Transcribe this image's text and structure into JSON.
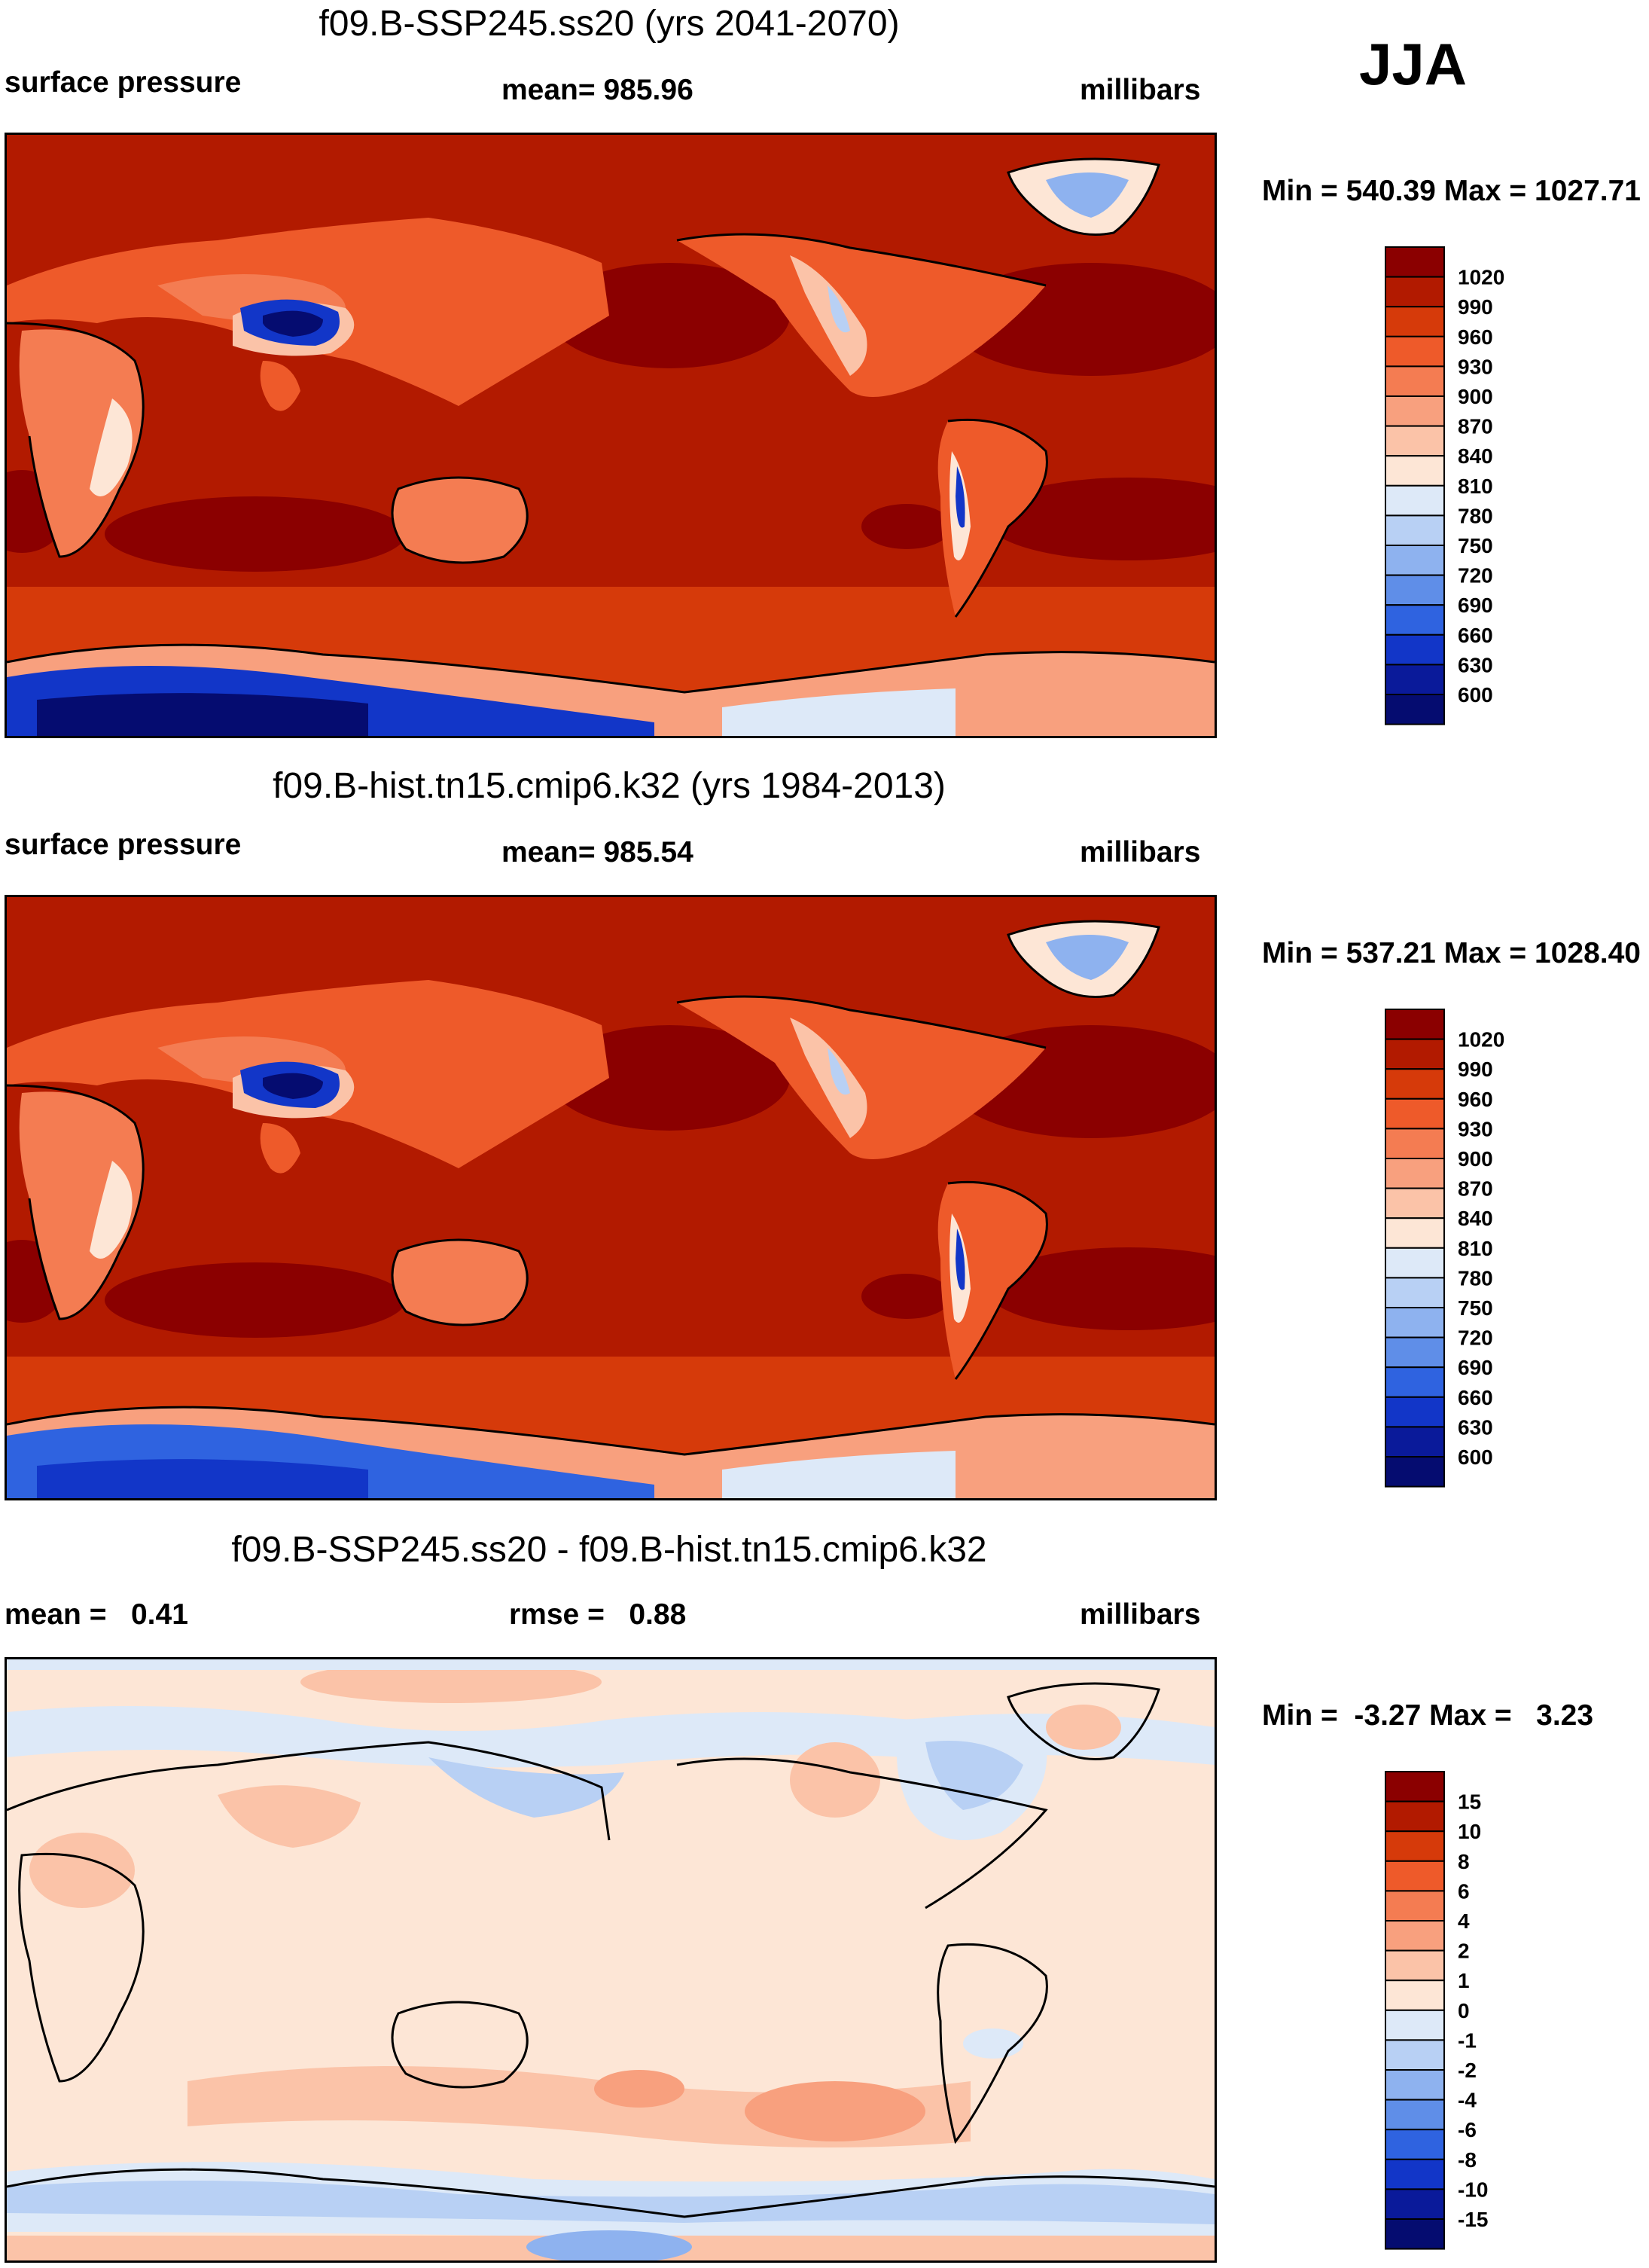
{
  "season": "JJA",
  "units": "millibars",
  "panels": [
    {
      "title": "f09.B-SSP245.ss20 (yrs 2041-2070)",
      "left_label": "surface pressure",
      "center_label": "mean= 985.96",
      "right_label": "millibars",
      "minmax": "Min = 540.39 Max = 1027.71"
    },
    {
      "title": "f09.B-hist.tn15.cmip6.k32 (yrs 1984-2013)",
      "left_label": "surface pressure",
      "center_label": "mean= 985.54",
      "right_label": "millibars",
      "minmax": "Min = 537.21 Max = 1028.40"
    },
    {
      "title": "f09.B-SSP245.ss20 - f09.B-hist.tn15.cmip6.k32",
      "left_label": "mean =   0.41",
      "center_label": "rmse =   0.88",
      "right_label": "millibars",
      "minmax": "Min =  -3.27 Max =   3.23"
    }
  ],
  "chart_data": [
    {
      "type": "heatmap",
      "title": "f09.B-SSP245.ss20 (yrs 2041-2070)",
      "variable": "surface pressure",
      "units": "millibars",
      "mean": 985.96,
      "min": 540.39,
      "max": 1027.71,
      "colorbar_levels": [
        1020,
        990,
        960,
        930,
        900,
        870,
        840,
        810,
        780,
        750,
        720,
        690,
        660,
        630,
        600
      ],
      "colorbar_colors": [
        "#8b0000",
        "#b21a00",
        "#d63a0a",
        "#ee5a2a",
        "#f47c52",
        "#f8a07e",
        "#fbc3a8",
        "#fde6d6",
        "#dde9f8",
        "#b8d0f4",
        "#8eb2ef",
        "#5f8ee8",
        "#2f63e0",
        "#1236c8",
        "#0a1a9a",
        "#050c70"
      ]
    },
    {
      "type": "heatmap",
      "title": "f09.B-hist.tn15.cmip6.k32 (yrs 1984-2013)",
      "variable": "surface pressure",
      "units": "millibars",
      "mean": 985.54,
      "min": 537.21,
      "max": 1028.4,
      "colorbar_levels": [
        1020,
        990,
        960,
        930,
        900,
        870,
        840,
        810,
        780,
        750,
        720,
        690,
        660,
        630,
        600
      ],
      "colorbar_colors": [
        "#8b0000",
        "#b21a00",
        "#d63a0a",
        "#ee5a2a",
        "#f47c52",
        "#f8a07e",
        "#fbc3a8",
        "#fde6d6",
        "#dde9f8",
        "#b8d0f4",
        "#8eb2ef",
        "#5f8ee8",
        "#2f63e0",
        "#1236c8",
        "#0a1a9a",
        "#050c70"
      ]
    },
    {
      "type": "heatmap",
      "title": "f09.B-SSP245.ss20 - f09.B-hist.tn15.cmip6.k32",
      "units": "millibars",
      "mean": 0.41,
      "rmse": 0.88,
      "min": -3.27,
      "max": 3.23,
      "colorbar_levels": [
        "15",
        "10",
        "8",
        "6",
        "4",
        "2",
        "1",
        "0",
        "-1",
        "-2",
        "-4",
        "-6",
        "-8",
        "-10",
        "-15"
      ],
      "colorbar_colors": [
        "#8b0000",
        "#b21a00",
        "#d63a0a",
        "#ee5a2a",
        "#f47c52",
        "#f8a07e",
        "#fbc3a8",
        "#fde6d6",
        "#dde9f8",
        "#b8d0f4",
        "#8eb2ef",
        "#5f8ee8",
        "#2f63e0",
        "#1236c8",
        "#0a1a9a",
        "#050c70"
      ]
    }
  ]
}
